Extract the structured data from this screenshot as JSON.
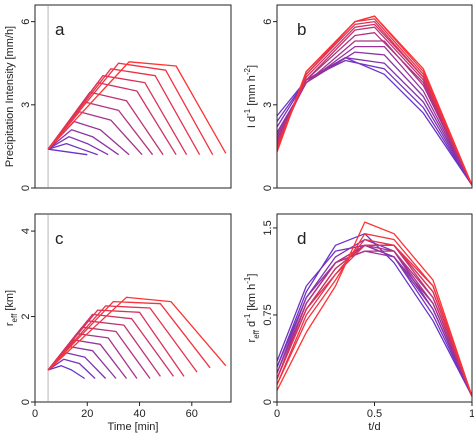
{
  "chart_data": [
    {
      "id": "a",
      "type": "line",
      "panel_label": "a",
      "title": "",
      "xlabel": "",
      "ylabel": "Precipitation Intensity [mm/h]",
      "xlim": [
        0,
        75
      ],
      "ylim": [
        0,
        6.6
      ],
      "x_ticks": [],
      "y_ticks": [
        {
          "value": 0,
          "label": "0"
        },
        {
          "value": 3,
          "label": "3"
        },
        {
          "value": 6,
          "label": "6"
        }
      ],
      "vline_x": 5,
      "grid": false,
      "legend": "none",
      "color_scale": [
        "#6633cc",
        "#ff3333"
      ],
      "series": [
        {
          "x": [
            5,
            20
          ],
          "y": [
            1.4,
            1.2
          ]
        },
        {
          "x": [
            5,
            12,
            18,
            24
          ],
          "y": [
            1.4,
            1.6,
            1.4,
            1.2
          ]
        },
        {
          "x": [
            5,
            13,
            20,
            28
          ],
          "y": [
            1.4,
            1.85,
            1.6,
            1.2
          ]
        },
        {
          "x": [
            5,
            14,
            22,
            32
          ],
          "y": [
            1.4,
            2.1,
            1.85,
            1.2
          ]
        },
        {
          "x": [
            5,
            15,
            25,
            36
          ],
          "y": [
            1.4,
            2.4,
            2.1,
            1.2
          ]
        },
        {
          "x": [
            5,
            17,
            29,
            41
          ],
          "y": [
            1.4,
            2.75,
            2.45,
            1.2
          ]
        },
        {
          "x": [
            5,
            19,
            32,
            45
          ],
          "y": [
            1.4,
            3.1,
            2.8,
            1.2
          ]
        },
        {
          "x": [
            5,
            21,
            35,
            49
          ],
          "y": [
            1.4,
            3.45,
            3.15,
            1.2
          ]
        },
        {
          "x": [
            5,
            24,
            39,
            54
          ],
          "y": [
            1.4,
            3.8,
            3.5,
            1.2
          ]
        },
        {
          "x": [
            5,
            26,
            42,
            58
          ],
          "y": [
            1.4,
            4.05,
            3.8,
            1.2
          ]
        },
        {
          "x": [
            5,
            29,
            46,
            63
          ],
          "y": [
            1.4,
            4.3,
            4.05,
            1.2
          ]
        },
        {
          "x": [
            5,
            32,
            50,
            68
          ],
          "y": [
            1.4,
            4.5,
            4.25,
            1.2
          ]
        },
        {
          "x": [
            5,
            36,
            54,
            73
          ],
          "y": [
            1.4,
            4.55,
            4.4,
            1.25
          ]
        }
      ]
    },
    {
      "id": "b",
      "type": "line",
      "panel_label": "b",
      "title": "",
      "xlabel": "",
      "ylabel": "I d⁻¹ [mm h⁻²]",
      "xlim": [
        0,
        1
      ],
      "ylim": [
        0,
        6.6
      ],
      "x_ticks": [],
      "y_ticks": [
        {
          "value": 0,
          "label": "0"
        },
        {
          "value": 3,
          "label": "3"
        },
        {
          "value": 6,
          "label": "6"
        }
      ],
      "grid": false,
      "legend": "none",
      "color_scale": [
        "#6633cc",
        "#ff3333"
      ],
      "series": [
        {
          "x": [
            0,
            0.15,
            0.35,
            0.55,
            0.75,
            1
          ],
          "y": [
            2.6,
            3.9,
            4.7,
            4.1,
            2.7,
            0.1
          ]
        },
        {
          "x": [
            0,
            0.15,
            0.35,
            0.55,
            0.75,
            1
          ],
          "y": [
            2.4,
            3.9,
            4.6,
            4.3,
            2.9,
            0.1
          ]
        },
        {
          "x": [
            0,
            0.15,
            0.35,
            0.55,
            0.75,
            1
          ],
          "y": [
            2.2,
            3.9,
            4.7,
            4.5,
            3.1,
            0.1
          ]
        },
        {
          "x": [
            0,
            0.15,
            0.4,
            0.55,
            0.75,
            1
          ],
          "y": [
            2.0,
            3.8,
            4.9,
            4.8,
            3.3,
            0.1
          ]
        },
        {
          "x": [
            0,
            0.15,
            0.4,
            0.55,
            0.75,
            1
          ],
          "y": [
            1.9,
            3.8,
            5.1,
            5.1,
            3.5,
            0.1
          ]
        },
        {
          "x": [
            0,
            0.15,
            0.4,
            0.55,
            0.75,
            1
          ],
          "y": [
            1.8,
            3.8,
            5.3,
            5.3,
            3.7,
            0.1
          ]
        },
        {
          "x": [
            0,
            0.15,
            0.4,
            0.5,
            0.75,
            1
          ],
          "y": [
            1.7,
            3.9,
            5.5,
            5.6,
            3.8,
            0.1
          ]
        },
        {
          "x": [
            0,
            0.15,
            0.4,
            0.5,
            0.75,
            1
          ],
          "y": [
            1.6,
            3.9,
            5.7,
            5.8,
            3.9,
            0.1
          ]
        },
        {
          "x": [
            0,
            0.15,
            0.4,
            0.5,
            0.75,
            1
          ],
          "y": [
            1.5,
            4.0,
            5.8,
            5.9,
            4.0,
            0.1
          ]
        },
        {
          "x": [
            0,
            0.15,
            0.4,
            0.5,
            0.75,
            1
          ],
          "y": [
            1.5,
            4.1,
            5.9,
            6.0,
            4.0,
            0.1
          ]
        },
        {
          "x": [
            0,
            0.15,
            0.4,
            0.5,
            0.75,
            1
          ],
          "y": [
            1.4,
            4.1,
            6.0,
            6.1,
            4.1,
            0.1
          ]
        },
        {
          "x": [
            0,
            0.15,
            0.4,
            0.5,
            0.75,
            1
          ],
          "y": [
            1.4,
            4.2,
            6.0,
            6.2,
            4.2,
            0.1
          ]
        },
        {
          "x": [
            0,
            0.15,
            0.4,
            0.5,
            0.75,
            1
          ],
          "y": [
            1.3,
            4.2,
            6.0,
            6.2,
            4.3,
            0.1
          ]
        }
      ]
    },
    {
      "id": "c",
      "type": "line",
      "panel_label": "c",
      "title": "",
      "xlabel": "Time [min]",
      "ylabel": "r_eff [km]",
      "xlim": [
        0,
        75
      ],
      "ylim": [
        0,
        4.4
      ],
      "x_ticks": [
        {
          "value": 0,
          "label": "0"
        },
        {
          "value": 20,
          "label": "20"
        },
        {
          "value": 40,
          "label": "40"
        },
        {
          "value": 60,
          "label": "60"
        }
      ],
      "y_ticks": [
        {
          "value": 0,
          "label": "0"
        },
        {
          "value": 2,
          "label": "2"
        },
        {
          "value": 4,
          "label": "4"
        }
      ],
      "vline_x": 5,
      "grid": false,
      "legend": "none",
      "color_scale": [
        "#6633cc",
        "#ff3333"
      ],
      "series": [
        {
          "x": [
            5,
            10,
            14,
            19
          ],
          "y": [
            0.75,
            0.85,
            0.75,
            0.55
          ]
        },
        {
          "x": [
            5,
            11,
            17,
            23
          ],
          "y": [
            0.75,
            1.0,
            0.9,
            0.55
          ]
        },
        {
          "x": [
            5,
            12,
            19,
            27
          ],
          "y": [
            0.75,
            1.15,
            1.05,
            0.55
          ]
        },
        {
          "x": [
            5,
            13,
            22,
            31
          ],
          "y": [
            0.75,
            1.3,
            1.2,
            0.55
          ]
        },
        {
          "x": [
            5,
            15,
            25,
            35
          ],
          "y": [
            0.75,
            1.45,
            1.35,
            0.55
          ]
        },
        {
          "x": [
            5,
            16,
            28,
            39
          ],
          "y": [
            0.75,
            1.6,
            1.5,
            0.55
          ]
        },
        {
          "x": [
            5,
            18,
            31,
            44
          ],
          "y": [
            0.75,
            1.75,
            1.65,
            0.55
          ]
        },
        {
          "x": [
            5,
            20,
            34,
            48
          ],
          "y": [
            0.75,
            1.9,
            1.8,
            0.6
          ]
        },
        {
          "x": [
            5,
            22,
            37,
            53
          ],
          "y": [
            0.75,
            2.05,
            1.95,
            0.6
          ]
        },
        {
          "x": [
            5,
            24,
            40,
            57
          ],
          "y": [
            0.75,
            2.15,
            2.1,
            0.6
          ]
        },
        {
          "x": [
            5,
            27,
            44,
            62
          ],
          "y": [
            0.75,
            2.25,
            2.2,
            0.7
          ]
        },
        {
          "x": [
            5,
            30,
            48,
            67
          ],
          "y": [
            0.75,
            2.35,
            2.3,
            0.8
          ]
        },
        {
          "x": [
            5,
            35,
            52,
            73
          ],
          "y": [
            0.75,
            2.45,
            2.35,
            0.85
          ]
        }
      ]
    },
    {
      "id": "d",
      "type": "line",
      "panel_label": "d",
      "title": "",
      "xlabel": "t/d",
      "ylabel": "r_eff d⁻¹ [km h⁻¹]",
      "xlim": [
        0,
        1
      ],
      "ylim": [
        0,
        1.62
      ],
      "x_ticks": [
        {
          "value": 0,
          "label": "0"
        },
        {
          "value": 0.5,
          "label": "0.5"
        },
        {
          "value": 1,
          "label": "1"
        }
      ],
      "y_ticks": [
        {
          "value": 0,
          "label": "0"
        },
        {
          "value": 0.75,
          "label": "0.75"
        },
        {
          "value": 1.5,
          "label": "1.5"
        }
      ],
      "grid": false,
      "legend": "none",
      "color_scale": [
        "#6633cc",
        "#ff3333"
      ],
      "series": [
        {
          "x": [
            0,
            0.15,
            0.3,
            0.45,
            0.6,
            0.8,
            1
          ],
          "y": [
            0.3,
            0.95,
            1.35,
            1.45,
            1.2,
            0.7,
            0.05
          ]
        },
        {
          "x": [
            0,
            0.15,
            0.3,
            0.45,
            0.6,
            0.8,
            1
          ],
          "y": [
            0.35,
            1.0,
            1.3,
            1.35,
            1.25,
            0.75,
            0.05
          ]
        },
        {
          "x": [
            0,
            0.15,
            0.3,
            0.45,
            0.6,
            0.8,
            1
          ],
          "y": [
            0.3,
            0.9,
            1.25,
            1.4,
            1.3,
            0.8,
            0.05
          ]
        },
        {
          "x": [
            0,
            0.15,
            0.3,
            0.45,
            0.6,
            0.8,
            1
          ],
          "y": [
            0.25,
            0.9,
            1.2,
            1.35,
            1.25,
            0.8,
            0.05
          ]
        },
        {
          "x": [
            0,
            0.15,
            0.3,
            0.45,
            0.6,
            0.8,
            1
          ],
          "y": [
            0.25,
            0.85,
            1.2,
            1.3,
            1.25,
            0.85,
            0.05
          ]
        },
        {
          "x": [
            0,
            0.15,
            0.3,
            0.45,
            0.6,
            0.8,
            1
          ],
          "y": [
            0.2,
            0.85,
            1.2,
            1.3,
            1.3,
            0.85,
            0.05
          ]
        },
        {
          "x": [
            0,
            0.15,
            0.3,
            0.45,
            0.6,
            0.8,
            1
          ],
          "y": [
            0.2,
            0.85,
            1.2,
            1.35,
            1.3,
            0.9,
            0.05
          ]
        },
        {
          "x": [
            0,
            0.15,
            0.3,
            0.45,
            0.6,
            0.8,
            1
          ],
          "y": [
            0.2,
            0.8,
            1.15,
            1.35,
            1.35,
            0.9,
            0.05
          ]
        },
        {
          "x": [
            0,
            0.15,
            0.3,
            0.45,
            0.6,
            0.8,
            1
          ],
          "y": [
            0.2,
            0.8,
            1.15,
            1.35,
            1.35,
            0.95,
            0.05
          ]
        },
        {
          "x": [
            0,
            0.15,
            0.3,
            0.45,
            0.6,
            0.8,
            1
          ],
          "y": [
            0.2,
            0.8,
            1.1,
            1.35,
            1.35,
            0.95,
            0.05
          ]
        },
        {
          "x": [
            0,
            0.15,
            0.3,
            0.45,
            0.6,
            0.8,
            1
          ],
          "y": [
            0.15,
            0.75,
            1.1,
            1.4,
            1.35,
            1.0,
            0.05
          ]
        },
        {
          "x": [
            0,
            0.15,
            0.3,
            0.45,
            0.6,
            0.8,
            1
          ],
          "y": [
            0.15,
            0.7,
            1.05,
            1.45,
            1.4,
            1.0,
            0.05
          ]
        },
        {
          "x": [
            0,
            0.15,
            0.3,
            0.45,
            0.6,
            0.8,
            1
          ],
          "y": [
            0.1,
            0.6,
            1.0,
            1.55,
            1.45,
            1.05,
            0.05
          ]
        }
      ]
    }
  ]
}
